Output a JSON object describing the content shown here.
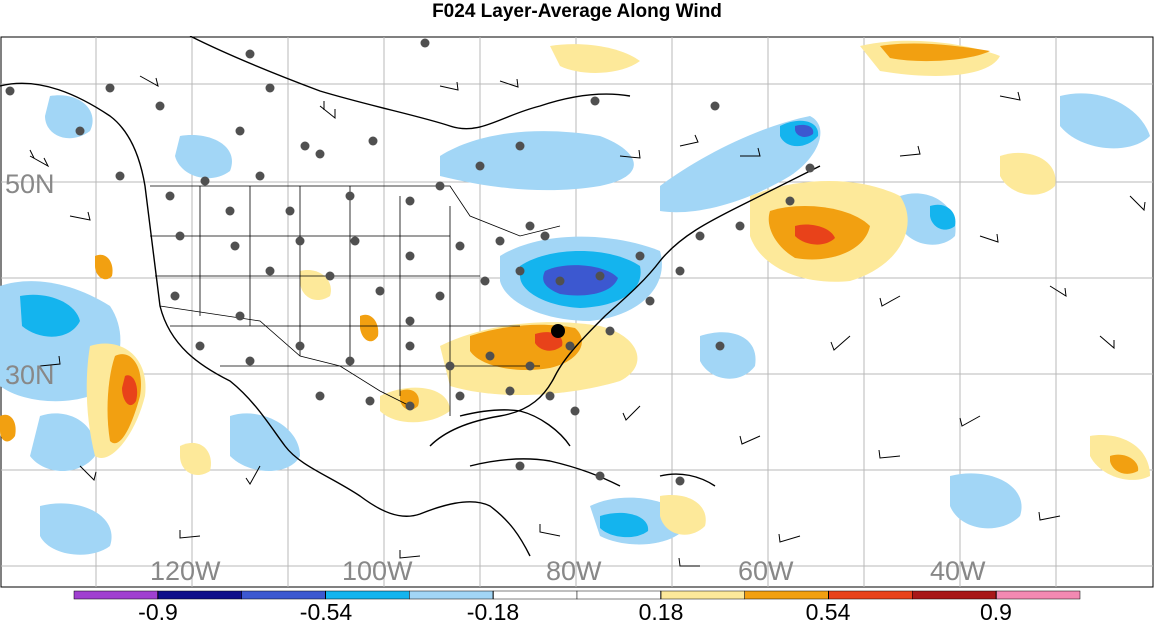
{
  "title": "F024 Layer-Average Along Wind",
  "lat_labels": [
    "50N",
    "30N"
  ],
  "lon_labels": [
    "120W",
    "100W",
    "80W",
    "60W",
    "40W"
  ],
  "colorbar": {
    "colors": [
      "#a040d0",
      "#10108a",
      "#3c58d0",
      "#14b4ee",
      "#a2d6f6",
      "#ffffff",
      "#ffffff",
      "#fde99a",
      "#f2a011",
      "#e8421a",
      "#a81818",
      "#f389b2"
    ],
    "labels": [
      "-0.9",
      "-0.54",
      "-0.18",
      "0.18",
      "0.54",
      "0.9"
    ]
  }
}
